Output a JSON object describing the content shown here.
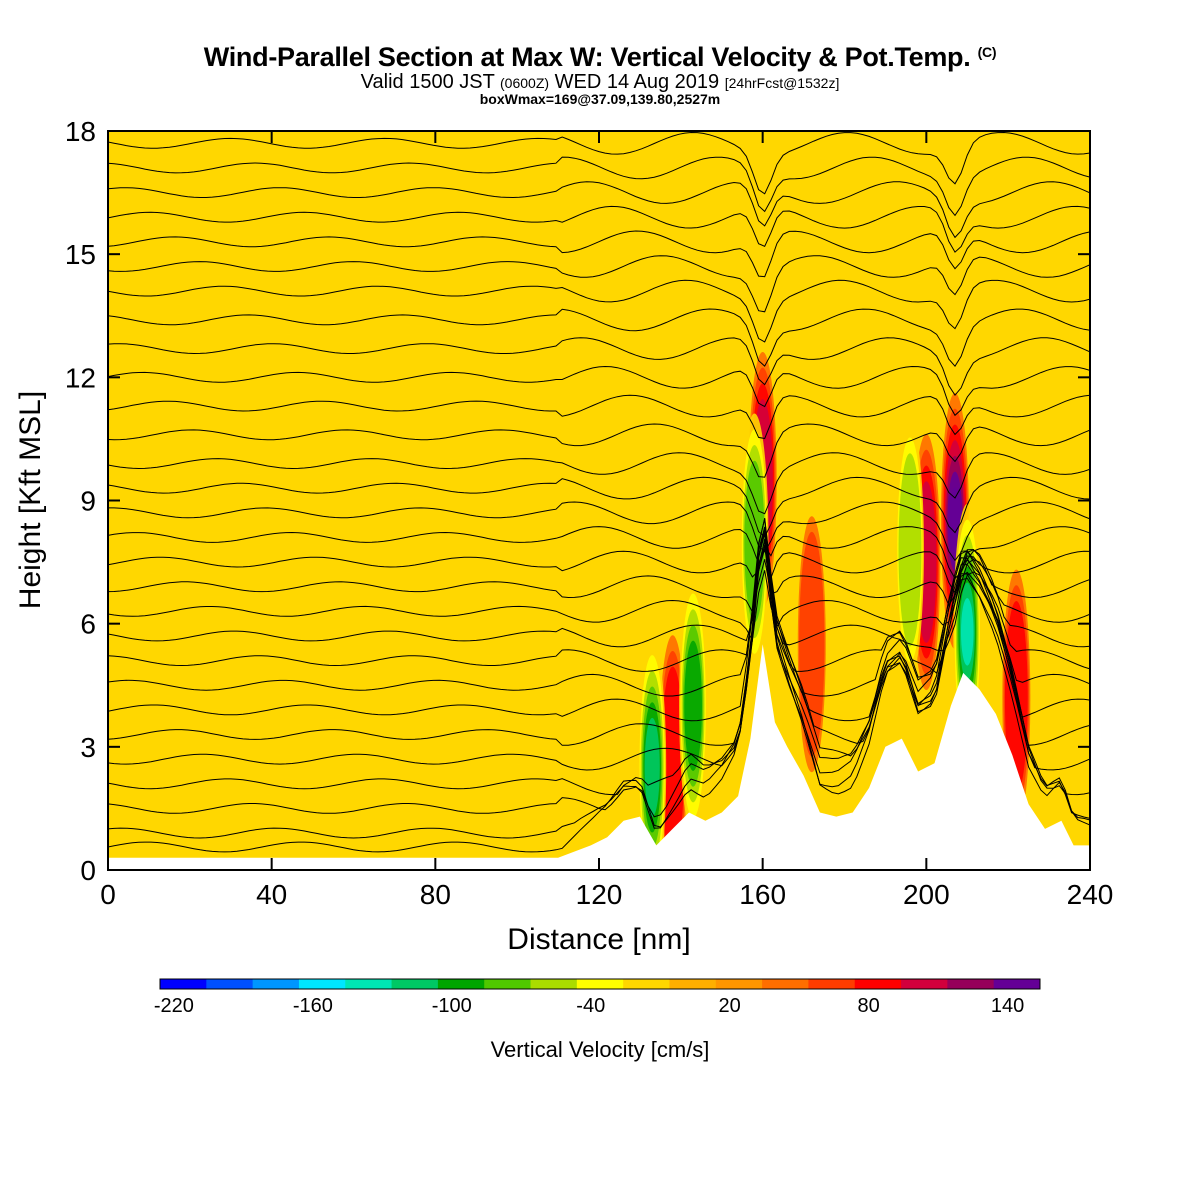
{
  "chart_data": {
    "type": "heatmap",
    "title_main": "Wind-Parallel Section at Max W: Vertical Velocity & Pot.Temp.",
    "title_mark": "(C)",
    "subtitle_a": "Valid 1500 JST",
    "subtitle_b": "(0600Z)",
    "subtitle_c": "WED 14 Aug 2019",
    "subtitle_d": "[24hrFcst@1532z]",
    "subtitle2": "boxWmax=169@37.09,139.80,2527m",
    "xlabel": "Distance [nm]",
    "ylabel": "Height [Kft MSL]",
    "xlim": [
      0,
      240
    ],
    "ylim": [
      0,
      18
    ],
    "xticks": [
      "0",
      "40",
      "80",
      "120",
      "160",
      "200",
      "240"
    ],
    "yticks": [
      "0",
      "3",
      "6",
      "9",
      "12",
      "15",
      "18"
    ],
    "colorbar_label": "Vertical Velocity [cm/s]",
    "colorbar_ticks": [
      "-220",
      "-160",
      "-100",
      "-40",
      "20",
      "80",
      "140"
    ],
    "colorbar_colors": [
      "#0000ff",
      "#0050ff",
      "#0096ff",
      "#00e6ff",
      "#00e6b4",
      "#00c864",
      "#00a500",
      "#50c800",
      "#aadc00",
      "#ffff00",
      "#ffd700",
      "#ffaf00",
      "#ff9600",
      "#ff6e00",
      "#ff3c00",
      "#ff0000",
      "#d2003c",
      "#96005a",
      "#640096"
    ],
    "background_color": "#ffd700",
    "terrain_profile": [
      [
        0,
        0.3
      ],
      [
        60,
        0.3
      ],
      [
        110,
        0.3
      ],
      [
        118,
        0.6
      ],
      [
        122,
        0.8
      ],
      [
        126,
        1.2
      ],
      [
        130,
        1.3
      ],
      [
        134,
        0.6
      ],
      [
        138,
        1.0
      ],
      [
        142,
        1.4
      ],
      [
        146,
        1.2
      ],
      [
        150,
        1.4
      ],
      [
        154,
        1.8
      ],
      [
        157,
        3.2
      ],
      [
        160,
        5.5
      ],
      [
        163,
        3.6
      ],
      [
        166,
        3.0
      ],
      [
        170,
        2.3
      ],
      [
        174,
        1.4
      ],
      [
        178,
        1.3
      ],
      [
        182,
        1.4
      ],
      [
        186,
        2.0
      ],
      [
        190,
        3.0
      ],
      [
        194,
        3.2
      ],
      [
        198,
        2.4
      ],
      [
        202,
        2.6
      ],
      [
        206,
        4.0
      ],
      [
        209,
        4.8
      ],
      [
        213,
        4.4
      ],
      [
        217,
        3.8
      ],
      [
        221,
        2.8
      ],
      [
        225,
        1.6
      ],
      [
        229,
        1.0
      ],
      [
        233,
        1.2
      ],
      [
        236,
        0.6
      ],
      [
        240,
        0.6
      ]
    ],
    "isentrope_levels": [
      0.4,
      0.9,
      1.5,
      2.1,
      2.7,
      3.3,
      3.9,
      4.5,
      5.1,
      5.7,
      6.3,
      6.9,
      7.5,
      8.1,
      8.7,
      9.3,
      9.9,
      10.6,
      11.3,
      12.0,
      12.7,
      13.4,
      14.1,
      14.7,
      15.3,
      15.9,
      16.5,
      17.1,
      17.7
    ],
    "updraft_cores": [
      [
        160,
        9.5,
        80
      ],
      [
        207,
        8.5,
        140
      ],
      [
        200,
        7.5,
        80
      ],
      [
        138,
        2.6,
        60
      ],
      [
        222,
        4.2,
        60
      ],
      [
        172,
        5.5,
        40
      ]
    ],
    "downdraft_cores": [
      [
        133,
        2.5,
        -150
      ],
      [
        143,
        4.0,
        -120
      ],
      [
        158,
        8.0,
        -100
      ],
      [
        210,
        5.8,
        -160
      ],
      [
        196,
        7.8,
        -80
      ]
    ]
  }
}
